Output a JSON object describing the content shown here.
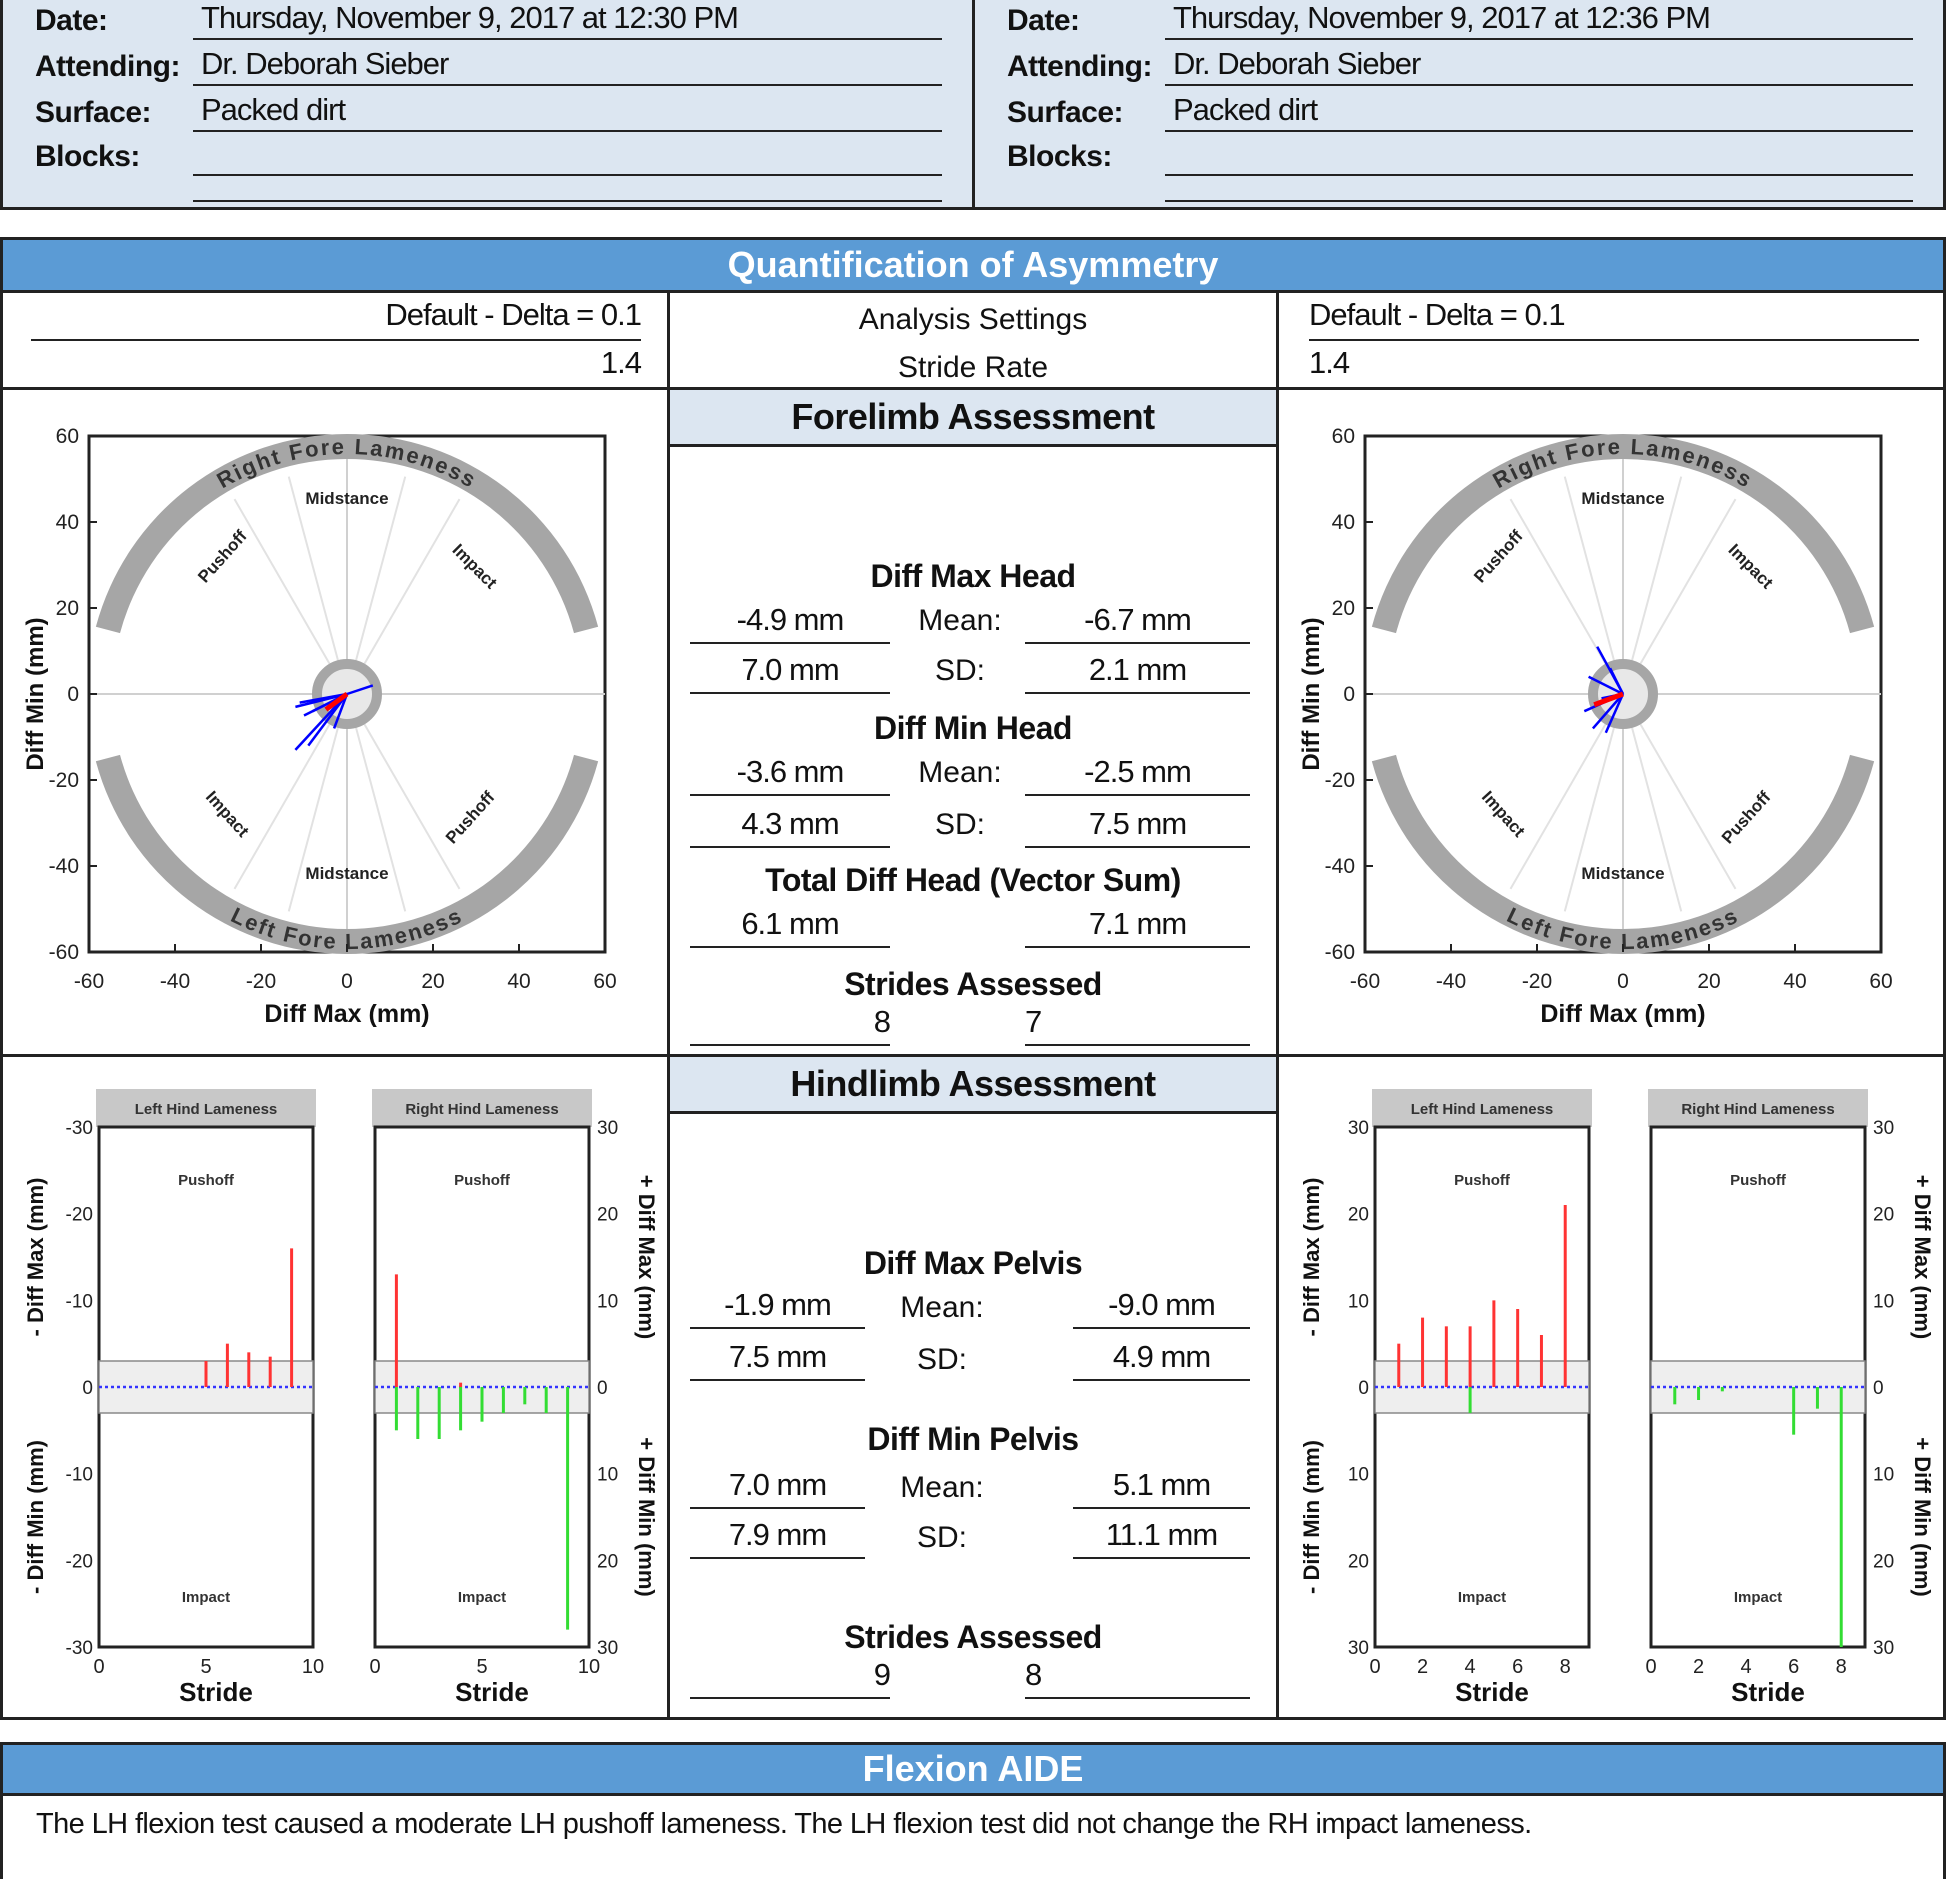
{
  "visits": [
    {
      "fields": [
        {
          "label": "Date:",
          "value": "Thursday, November 9, 2017 at 12:30 PM"
        },
        {
          "label": "Attending:",
          "value": "Dr. Deborah Sieber"
        },
        {
          "label": "Surface:",
          "value": "Packed dirt"
        },
        {
          "label": "Blocks:",
          "value": ""
        }
      ],
      "settings": {
        "analysis": "Default - Delta = 0.1",
        "stride_rate": "1.4"
      }
    },
    {
      "fields": [
        {
          "label": "Date:",
          "value": "Thursday, November 9, 2017 at 12:36 PM"
        },
        {
          "label": "Attending:",
          "value": "Dr. Deborah Sieber"
        },
        {
          "label": "Surface:",
          "value": "Packed dirt"
        },
        {
          "label": "Blocks:",
          "value": ""
        }
      ],
      "settings": {
        "analysis": "Default - Delta = 0.1",
        "stride_rate": "1.4"
      }
    }
  ],
  "quantification": {
    "title": "Quantification of Asymmetry",
    "analysis_label": "Analysis Settings",
    "stride_rate_label": "Stride Rate"
  },
  "forelimb": {
    "title": "Forelimb Assessment",
    "diff_max_head": {
      "title": "Diff Max Head",
      "left_mean": "-4.9 mm",
      "left_sd": "7.0 mm",
      "right_mean": "-6.7 mm",
      "right_sd": "2.1 mm"
    },
    "diff_min_head": {
      "title": "Diff Min Head",
      "left_mean": "-3.6 mm",
      "left_sd": "4.3 mm",
      "right_mean": "-2.5 mm",
      "right_sd": "7.5 mm"
    },
    "total": {
      "title": "Total Diff Head (Vector Sum)",
      "left": "6.1 mm",
      "right": "7.1 mm"
    },
    "strides": {
      "title": "Strides Assessed",
      "left": "8",
      "right": "7"
    },
    "mean_label": "Mean:",
    "sd_label": "SD:"
  },
  "hindlimb": {
    "title": "Hindlimb Assessment",
    "diff_max_pelvis": {
      "title": "Diff Max Pelvis",
      "left_mean": "-1.9 mm",
      "left_sd": "7.5 mm",
      "right_mean": "-9.0 mm",
      "right_sd": "4.9 mm"
    },
    "diff_min_pelvis": {
      "title": "Diff Min Pelvis",
      "left_mean": "7.0 mm",
      "left_sd": "7.9 mm",
      "right_mean": "5.1 mm",
      "right_sd": "11.1 mm"
    },
    "strides": {
      "title": "Strides Assessed",
      "left": "9",
      "right": "8"
    },
    "mean_label": "Mean:",
    "sd_label": "SD:"
  },
  "flexion": {
    "title": "Flexion AIDE",
    "text": "The LH flexion test caused a moderate LH pushoff lameness.  The LH flexion test did not change the RH impact lameness."
  },
  "chart_data": [
    {
      "type": "scatter",
      "name": "forelimb-polar-1",
      "xlabel": "Diff Max (mm)",
      "ylabel": "Diff Min (mm)",
      "xlim": [
        -60,
        60
      ],
      "ylim": [
        -60,
        60
      ],
      "ticks": [
        -60,
        -40,
        -20,
        0,
        20,
        40,
        60
      ],
      "arc_labels": {
        "top": "Right Fore Lameness",
        "bottom": "Left Fore Lameness",
        "pushoff": "Pushoff",
        "midstance": "Midstance",
        "impact": "Impact"
      },
      "vectors": [
        [
          -12,
          -3
        ],
        [
          -10,
          -5
        ],
        [
          -9,
          -12
        ],
        [
          -8,
          -4
        ],
        [
          -11,
          -2
        ],
        [
          -12,
          -13
        ],
        [
          6,
          2
        ],
        [
          -3,
          -8
        ]
      ],
      "mean_vector": [
        -4.9,
        -3.6
      ],
      "colors": {
        "vectors": "#0000ff",
        "mean": "#ff0000",
        "arc": "#a6a6a6"
      }
    },
    {
      "type": "scatter",
      "name": "forelimb-polar-2",
      "xlabel": "Diff Max (mm)",
      "ylabel": "Diff Min (mm)",
      "xlim": [
        -60,
        60
      ],
      "ylim": [
        -60,
        60
      ],
      "ticks": [
        -60,
        -40,
        -20,
        0,
        20,
        40,
        60
      ],
      "arc_labels": {
        "top": "Right Fore Lameness",
        "bottom": "Left Fore Lameness",
        "pushoff": "Pushoff",
        "midstance": "Midstance",
        "impact": "Impact"
      },
      "vectors": [
        [
          -6,
          11
        ],
        [
          -8,
          4
        ],
        [
          -9,
          -4
        ],
        [
          -7,
          -8
        ],
        [
          -4,
          -9
        ],
        [
          -3,
          6
        ],
        [
          -5,
          -1
        ]
      ],
      "mean_vector": [
        -6.7,
        -2.5
      ],
      "colors": {
        "vectors": "#0000ff",
        "mean": "#ff0000",
        "arc": "#a6a6a6"
      }
    },
    {
      "type": "bar",
      "name": "hindlimb-strides-1",
      "left_title": "Left Hind Lameness",
      "right_title": "Right Hind Lameness",
      "top_label": "Pushoff",
      "bottom_label": "Impact",
      "xlabel": "Stride",
      "ylabel_left_top": "- Diff Max (mm)",
      "ylabel_left_bottom": "- Diff Min (mm)",
      "ylabel_right_top": "+ Diff Max (mm)",
      "ylabel_right_bottom": "+ Diff Min (mm)",
      "ylim": [
        -30,
        30
      ],
      "xlim": [
        0,
        10
      ],
      "yticks_left": [
        "-30",
        "-20",
        "-10",
        "0",
        "-10",
        "-20",
        "-30"
      ],
      "yticks_right": [
        "30",
        "20",
        "10",
        "0",
        "10",
        "20",
        "30"
      ],
      "xticks": [
        "0",
        "5",
        "10"
      ],
      "left_red": [
        [
          5,
          3
        ],
        [
          6,
          5
        ],
        [
          7,
          4
        ],
        [
          8,
          3.5
        ],
        [
          9,
          16
        ]
      ],
      "right_red": [
        [
          1,
          13
        ],
        [
          4,
          0.5
        ]
      ],
      "right_green": [
        [
          1,
          -5
        ],
        [
          2,
          -6
        ],
        [
          3,
          -6
        ],
        [
          4,
          -5
        ],
        [
          5,
          -4
        ],
        [
          6,
          -3
        ],
        [
          7,
          -2
        ],
        [
          8,
          -3
        ],
        [
          9,
          -28
        ]
      ],
      "colors": {
        "red": "#ff3333",
        "green": "#33dd33"
      }
    },
    {
      "type": "bar",
      "name": "hindlimb-strides-2",
      "left_title": "Left Hind Lameness",
      "right_title": "Right Hind Lameness",
      "top_label": "Pushoff",
      "bottom_label": "Impact",
      "xlabel": "Stride",
      "ylabel_left_top": "- Diff Max (mm)",
      "ylabel_left_bottom": "- Diff Min (mm)",
      "ylabel_right_top": "+ Diff Max (mm)",
      "ylabel_right_bottom": "+ Diff Min (mm)",
      "ylim": [
        -30,
        30
      ],
      "xlim": [
        0,
        9
      ],
      "yticks_left": [
        "30",
        "20",
        "10",
        "0",
        "10",
        "20",
        "30"
      ],
      "yticks_right": [
        "30",
        "20",
        "10",
        "0",
        "10",
        "20",
        "30"
      ],
      "xticks": [
        "0",
        "2",
        "4",
        "6",
        "8"
      ],
      "left_red": [
        [
          1,
          5
        ],
        [
          2,
          8
        ],
        [
          3,
          7
        ],
        [
          4,
          7
        ],
        [
          5,
          10
        ],
        [
          6,
          9
        ],
        [
          7,
          6
        ],
        [
          8,
          21
        ]
      ],
      "left_green": [
        [
          4,
          -3
        ]
      ],
      "right_green": [
        [
          1,
          -2
        ],
        [
          2,
          -1.5
        ],
        [
          3,
          -0.5
        ],
        [
          6,
          -5.5
        ],
        [
          7,
          -2.5
        ],
        [
          8,
          -30
        ]
      ],
      "colors": {
        "red": "#ff3333",
        "green": "#33dd33"
      }
    }
  ]
}
